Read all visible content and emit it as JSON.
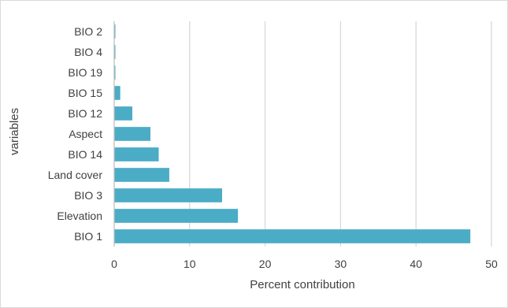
{
  "chart_data": {
    "type": "bar",
    "orientation": "horizontal",
    "categories": [
      "BIO 2",
      "BIO 4",
      "BIO 19",
      "BIO 15",
      "BIO 12",
      "Aspect",
      "BIO 14",
      "Land cover",
      "BIO 3",
      "Elevation",
      "BIO 1"
    ],
    "values": [
      0.1,
      0.1,
      0.1,
      0.8,
      2.4,
      4.8,
      5.9,
      7.3,
      14.3,
      16.4,
      47.2
    ],
    "xlabel": "Percent contribution",
    "ylabel": "variables",
    "xlim": [
      0,
      50
    ],
    "xticks": [
      0,
      10,
      20,
      30,
      40,
      50
    ],
    "grid": "vertical",
    "legend": "none",
    "bar_color": "#4bacc6",
    "grid_color": "#d9d9d9"
  }
}
